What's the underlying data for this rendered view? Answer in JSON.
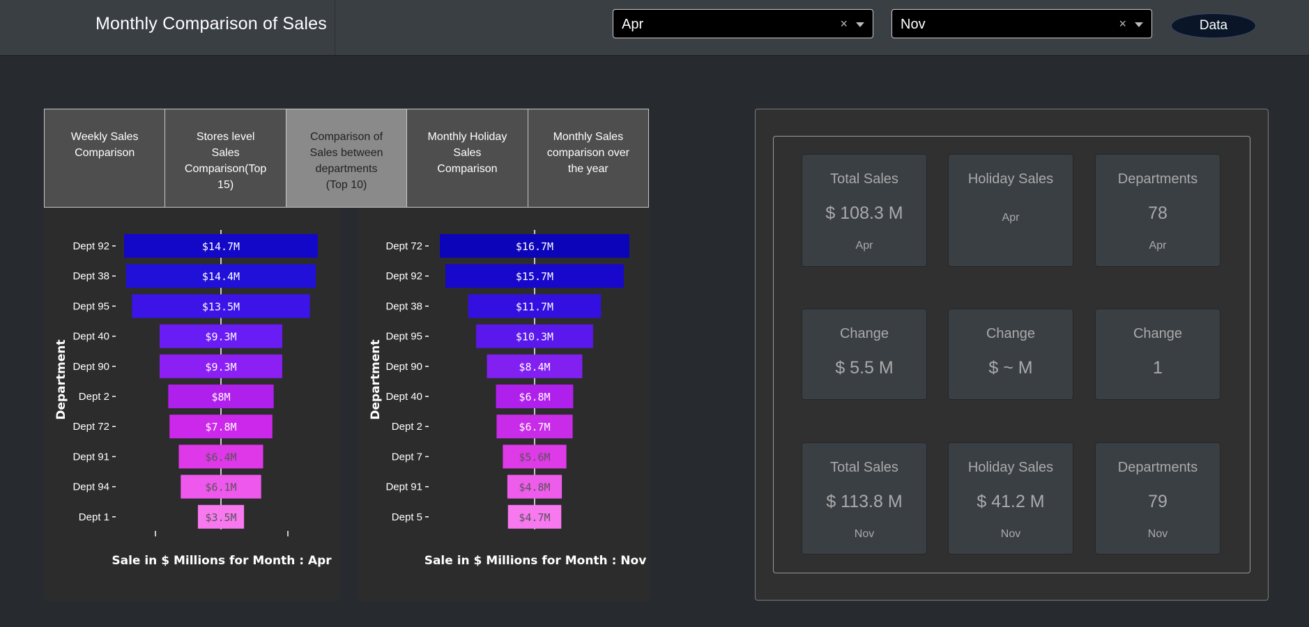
{
  "header": {
    "title": "Monthly Comparison of Sales",
    "month_a": "Apr",
    "month_b": "Nov",
    "clear_symbol": "×",
    "data_button": "Data"
  },
  "tabs": [
    {
      "label": "Weekly Sales Comparison",
      "active": false
    },
    {
      "label": "Stores level Sales Comparison(Top 15)",
      "active": false
    },
    {
      "label": "Comparison of Sales between departments (Top 10)",
      "active": true
    },
    {
      "label": "Monthly Holiday Sales Comparison",
      "active": false
    },
    {
      "label": "Monthly Sales comparison over the year",
      "active": false
    }
  ],
  "chart_data": [
    {
      "type": "bar",
      "orientation": "horizontal-funnel",
      "categories": [
        "Dept 92",
        "Dept 38",
        "Dept 95",
        "Dept 40",
        "Dept 90",
        "Dept 2",
        "Dept 72",
        "Dept 91",
        "Dept 94",
        "Dept 1"
      ],
      "values": [
        14.7,
        14.4,
        13.5,
        9.3,
        9.3,
        8.0,
        7.8,
        6.4,
        6.1,
        3.5
      ],
      "labels": [
        "$14.7M",
        "$14.4M",
        "$13.5M",
        "$9.3M",
        "$9.3M",
        "$8M",
        "$7.8M",
        "$6.4M",
        "$6.1M",
        "$3.5M"
      ],
      "xlabel": "Sale in $ Millions for Month : Apr",
      "ylabel": "Department",
      "colors": [
        "#1408c8",
        "#2010d8",
        "#3c14e8",
        "#6a1cf4",
        "#8c20f4",
        "#b020ec",
        "#cc28ec",
        "#de38e8",
        "#ee58ec",
        "#f878f0"
      ]
    },
    {
      "type": "bar",
      "orientation": "horizontal-funnel",
      "categories": [
        "Dept 72",
        "Dept 92",
        "Dept 38",
        "Dept 95",
        "Dept 90",
        "Dept 40",
        "Dept 2",
        "Dept 7",
        "Dept 91",
        "Dept 5"
      ],
      "values": [
        16.7,
        15.7,
        11.7,
        10.3,
        8.4,
        6.8,
        6.7,
        5.6,
        4.8,
        4.7
      ],
      "labels": [
        "$16.7M",
        "$15.7M",
        "$11.7M",
        "$10.3M",
        "$8.4M",
        "$6.8M",
        "$6.7M",
        "$5.6M",
        "$4.8M",
        "$4.7M"
      ],
      "xlabel": "Sale in $ Millions for Month : Nov",
      "ylabel": "Department",
      "colors": [
        "#0c04b8",
        "#1808cc",
        "#3410e0",
        "#5a18ec",
        "#8220f2",
        "#b020ec",
        "#c82ce8",
        "#de3ae8",
        "#ee5cec",
        "#f878f0"
      ]
    }
  ],
  "summary": {
    "row1": [
      {
        "label": "Total Sales",
        "value": "$ 108.3 M",
        "sub": "Apr"
      },
      {
        "label": "Holiday Sales",
        "value": "",
        "sub": "Apr"
      },
      {
        "label": "Departments",
        "value": "78",
        "sub": "Apr"
      }
    ],
    "row2": [
      {
        "label": "Change",
        "value": "$ 5.5 M"
      },
      {
        "label": "Change",
        "value": "$ ~ M"
      },
      {
        "label": "Change",
        "value": "1"
      }
    ],
    "row3": [
      {
        "label": "Total Sales",
        "value": "$ 113.8 M",
        "sub": "Nov"
      },
      {
        "label": "Holiday Sales",
        "value": "$ 41.2 M",
        "sub": "Nov"
      },
      {
        "label": "Departments",
        "value": "79",
        "sub": "Nov"
      }
    ]
  }
}
